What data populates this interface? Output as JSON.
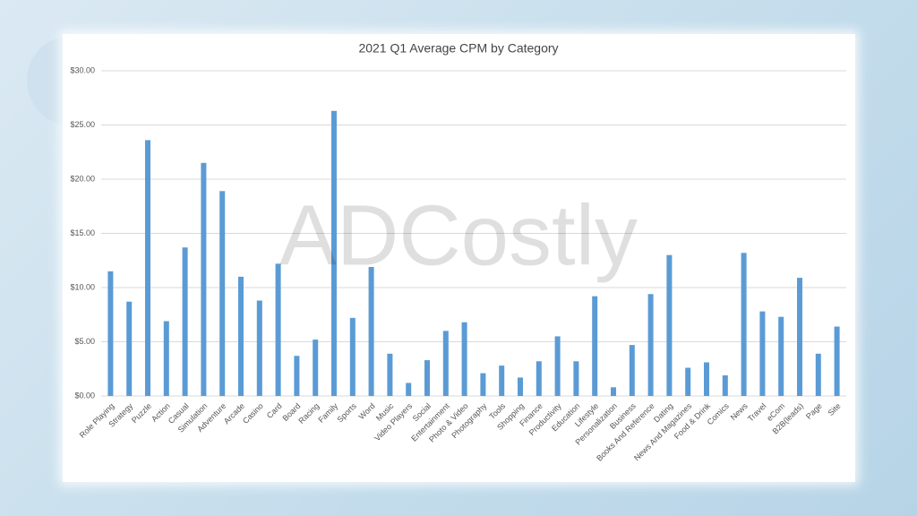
{
  "chart_data": {
    "type": "bar",
    "title": "2021 Q1 Average CPM by Category",
    "watermark": "ADCostly",
    "categories": [
      "Role Playing",
      "Strategy",
      "Puzzle",
      "Action",
      "Casual",
      "Simulation",
      "Adventure",
      "Arcade",
      "Casino",
      "Card",
      "Board",
      "Racing",
      "Family",
      "Sports",
      "Word",
      "Music",
      "Video Players",
      "Social",
      "Entertainment",
      "Photo & Video",
      "Photography",
      "Tools",
      "Shopping",
      "Finance",
      "Productivity",
      "Education",
      "Lifestyle",
      "Personalization",
      "Business",
      "Books And Reference",
      "Dating",
      "News And Magazines",
      "Food & Drink",
      "Comics",
      "News",
      "Travel",
      "eCom",
      "B2B(leads)",
      "Page",
      "Site"
    ],
    "values": [
      11.5,
      8.7,
      23.6,
      6.9,
      13.7,
      21.5,
      18.9,
      11.0,
      8.8,
      12.2,
      3.7,
      5.2,
      26.3,
      7.2,
      11.9,
      3.9,
      1.2,
      3.3,
      6.0,
      6.8,
      2.1,
      2.8,
      1.7,
      3.2,
      5.5,
      3.2,
      9.2,
      0.8,
      4.7,
      9.4,
      13.0,
      2.6,
      3.1,
      1.9,
      13.2,
      7.8,
      7.3,
      10.9,
      3.9,
      6.4
    ],
    "color": "#5b9bd5",
    "ylim": [
      0,
      30
    ],
    "yticks": [
      {
        "value": 0,
        "label": "$0.00"
      },
      {
        "value": 5,
        "label": "$5.00"
      },
      {
        "value": 10,
        "label": "$10.00"
      },
      {
        "value": 15,
        "label": "$15.00"
      },
      {
        "value": 20,
        "label": "$20.00"
      },
      {
        "value": 25,
        "label": "$25.00"
      },
      {
        "value": 30,
        "label": "$30.00"
      }
    ],
    "grid": true
  }
}
